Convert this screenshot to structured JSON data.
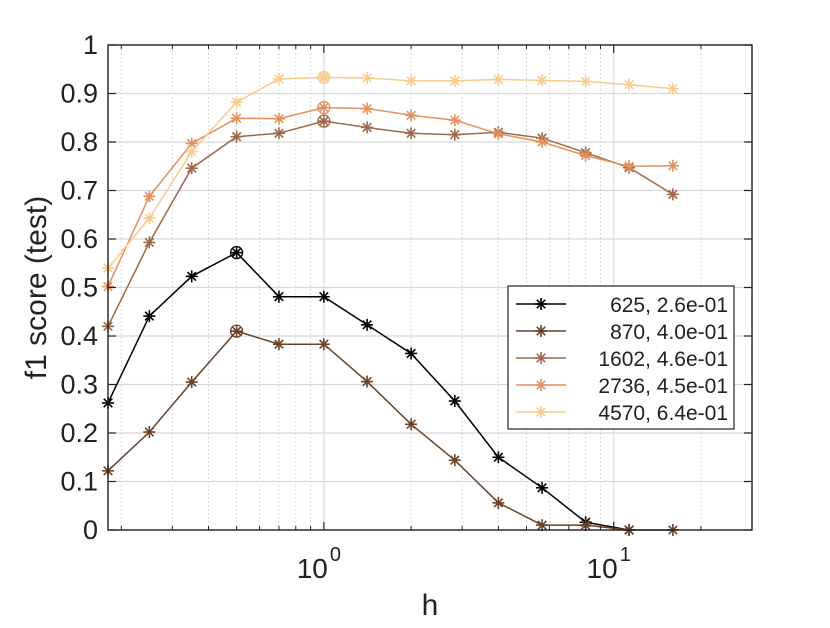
{
  "chart_data": {
    "type": "line",
    "title": "",
    "xlabel": "h",
    "ylabel": "f1 score (test)",
    "xscale": "log",
    "xlim": [
      0.18,
      30
    ],
    "ylim": [
      0,
      1
    ],
    "grid": true,
    "x_ticks": [
      {
        "value": 1,
        "base": "10",
        "exp": "0"
      },
      {
        "value": 10,
        "base": "10",
        "exp": "1"
      }
    ],
    "y_ticks": [
      {
        "value": 0,
        "label": "0"
      },
      {
        "value": 0.1,
        "label": "0.1"
      },
      {
        "value": 0.2,
        "label": "0.2"
      },
      {
        "value": 0.3,
        "label": "0.3"
      },
      {
        "value": 0.4,
        "label": "0.4"
      },
      {
        "value": 0.5,
        "label": "0.5"
      },
      {
        "value": 0.6,
        "label": "0.6"
      },
      {
        "value": 0.7,
        "label": "0.7"
      },
      {
        "value": 0.8,
        "label": "0.8"
      },
      {
        "value": 0.9,
        "label": "0.9"
      },
      {
        "value": 1,
        "label": "1"
      }
    ],
    "x": [
      0.18,
      0.25,
      0.35,
      0.5,
      0.7,
      1.0,
      1.41,
      2.0,
      2.83,
      4.0,
      5.66,
      8.0,
      11.3,
      16.0
    ],
    "legend_position": "middle-right",
    "series": [
      {
        "name": "625, 2.6e-01",
        "color": "#000000",
        "values": [
          0.262,
          0.441,
          0.523,
          0.572,
          0.481,
          0.481,
          0.423,
          0.364,
          0.266,
          0.15,
          0.087,
          0.016,
          0.0,
          null
        ],
        "best_index": 3
      },
      {
        "name": "870, 4.0e-01",
        "color": "#6b4226",
        "values": [
          0.122,
          0.202,
          0.305,
          0.41,
          0.383,
          0.383,
          0.306,
          0.218,
          0.144,
          0.056,
          0.01,
          0.01,
          0.0,
          0.0
        ],
        "best_index": 3
      },
      {
        "name": "1602, 4.6e-01",
        "color": "#a0684a",
        "values": [
          0.42,
          0.593,
          0.746,
          0.811,
          0.818,
          0.843,
          0.83,
          0.818,
          0.815,
          0.82,
          0.808,
          0.778,
          0.747,
          0.692
        ],
        "best_index": 5
      },
      {
        "name": "2736, 4.5e-01",
        "color": "#e2925e",
        "values": [
          0.502,
          0.688,
          0.797,
          0.849,
          0.848,
          0.871,
          0.869,
          0.855,
          0.845,
          0.817,
          0.8,
          0.772,
          0.75,
          0.751
        ],
        "best_index": 5
      },
      {
        "name": "4570, 6.4e-01",
        "color": "#f9cb8d",
        "values": [
          0.54,
          0.643,
          0.78,
          0.882,
          0.93,
          0.933,
          0.932,
          0.926,
          0.926,
          0.929,
          0.927,
          0.925,
          0.918,
          0.91
        ],
        "best_index": 5
      }
    ]
  }
}
